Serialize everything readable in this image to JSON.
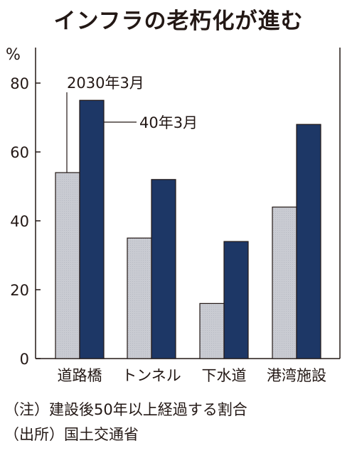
{
  "title": "インフラの老朽化が進む",
  "notes": {
    "note1": "（注）建設後50年以上経過する割合",
    "note2": "（出所）国土交通省"
  },
  "colors": {
    "series1": "#c9cbd2",
    "series2": "#1d3766",
    "axis": "#231815"
  },
  "chart_data": {
    "type": "bar",
    "ylabel": "%",
    "ylim": [
      0,
      80
    ],
    "yticks": [
      0,
      20,
      40,
      60,
      80
    ],
    "categories": [
      "道路橋",
      "トンネル",
      "下水道",
      "港湾施設"
    ],
    "series": [
      {
        "name": "2030年3月",
        "values": [
          54,
          35,
          16,
          44
        ]
      },
      {
        "name": "40年3月",
        "values": [
          75,
          52,
          34,
          68
        ]
      }
    ],
    "grid": false
  }
}
